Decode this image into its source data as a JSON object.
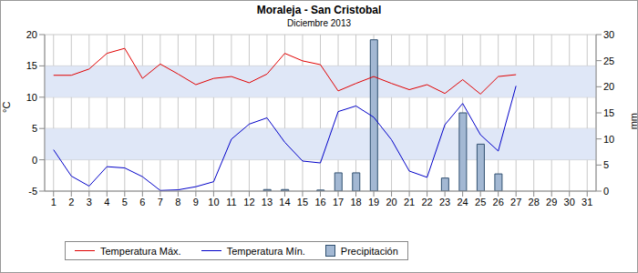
{
  "chart_data": {
    "type": "line",
    "title": "Moraleja - San Cristobal",
    "subtitle": "Diciembre 2013",
    "categories": [
      1,
      2,
      3,
      4,
      5,
      6,
      7,
      8,
      9,
      10,
      11,
      12,
      13,
      14,
      15,
      16,
      17,
      18,
      19,
      20,
      21,
      22,
      23,
      24,
      25,
      26,
      27,
      28,
      29,
      30,
      31
    ],
    "ylabel": "°C",
    "y2label": "mm",
    "ylim": [
      -5,
      20
    ],
    "yticks": [
      -5,
      0,
      5,
      10,
      15,
      20
    ],
    "y2lim": [
      0,
      30
    ],
    "y2ticks": [
      0,
      5,
      10,
      15,
      20,
      25,
      30
    ],
    "grid": true,
    "legend": "bottom",
    "series": [
      {
        "name": "Temperatura Máx.",
        "type": "line",
        "color": "#e00000",
        "values": [
          13.5,
          13.5,
          14.5,
          17,
          17.8,
          13,
          15.3,
          13.7,
          12,
          13,
          13.3,
          12.3,
          13.7,
          17,
          15.8,
          15.2,
          11,
          12.2,
          13.3,
          12.2,
          11.2,
          12,
          10.6,
          12.8,
          10.5,
          13.3,
          13.6,
          null,
          null,
          null,
          null
        ]
      },
      {
        "name": "Temperatura Mín.",
        "type": "line",
        "color": "#0000c8",
        "values": [
          1.6,
          -2.6,
          -4.2,
          -1.1,
          -1.3,
          -2.7,
          -4.9,
          -4.8,
          -4.3,
          -3.5,
          3.3,
          5.7,
          6.7,
          2.8,
          -0.2,
          -0.5,
          7.7,
          8.6,
          6.8,
          3.2,
          -1.8,
          -2.8,
          5.6,
          9,
          4,
          1.4,
          11.8,
          null,
          null,
          null,
          null
        ]
      },
      {
        "name": "Precipitación",
        "type": "bar",
        "axis": "y2",
        "color": "#a3b8d3",
        "values": [
          0,
          0,
          0,
          0,
          0,
          0,
          0,
          0,
          0,
          0,
          0,
          0,
          0.3,
          0.3,
          0,
          0.2,
          3.5,
          3.5,
          29,
          0,
          0,
          0,
          2.5,
          15,
          9,
          3.3,
          0,
          0,
          0,
          0,
          0
        ]
      }
    ]
  }
}
